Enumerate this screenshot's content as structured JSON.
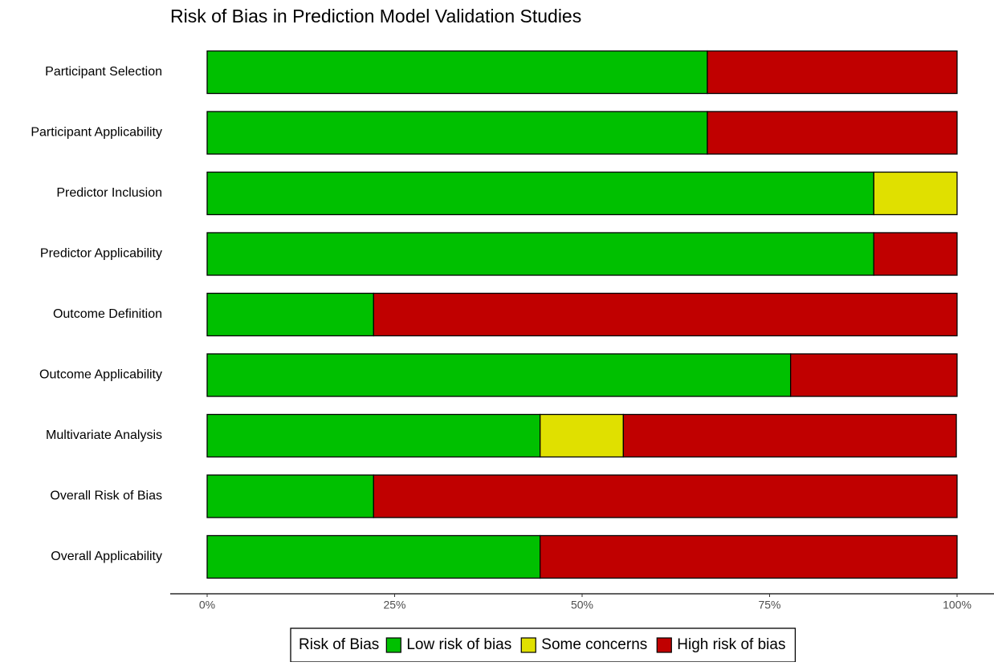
{
  "chart_data": {
    "type": "stacked-bar-horizontal",
    "title": "Risk of Bias in Prediction Model Validation Studies",
    "categories": [
      "Participant Selection",
      "Participant Applicability",
      "Predictor Inclusion",
      "Predictor Applicability",
      "Outcome Definition",
      "Outcome Applicability",
      "Multivariate Analysis",
      "Overall Risk of Bias",
      "Overall Applicability"
    ],
    "series": [
      {
        "name": "Low risk of bias",
        "color": "#00c000",
        "values": [
          66.7,
          66.7,
          88.9,
          88.9,
          22.2,
          77.8,
          44.4,
          22.2,
          44.4
        ]
      },
      {
        "name": "Some concerns",
        "color": "#e0e000",
        "values": [
          0,
          0,
          11.1,
          0,
          0,
          0,
          11.1,
          0,
          0
        ]
      },
      {
        "name": "High risk of bias",
        "color": "#c00000",
        "values": [
          33.3,
          33.3,
          0,
          11.1,
          77.8,
          22.2,
          44.4,
          77.8,
          55.6
        ]
      }
    ],
    "xlim": [
      0,
      100
    ],
    "xticks": [
      {
        "value": 0,
        "label": "0%"
      },
      {
        "value": 25,
        "label": "25%"
      },
      {
        "value": 50,
        "label": "50%"
      },
      {
        "value": 75,
        "label": "75%"
      },
      {
        "value": 100,
        "label": "100%"
      }
    ],
    "legend_title": "Risk of Bias",
    "legend_position": "bottom"
  }
}
